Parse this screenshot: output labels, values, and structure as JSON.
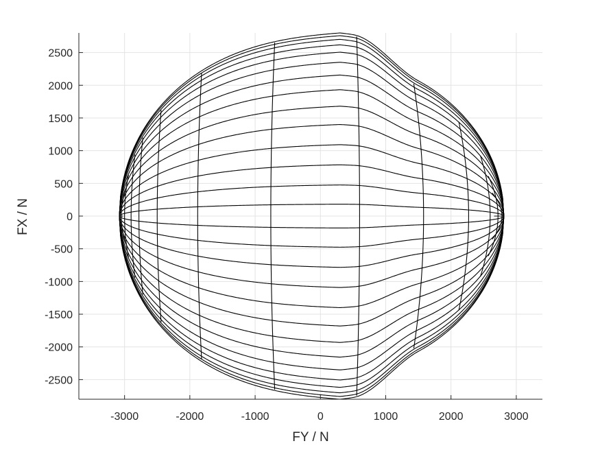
{
  "chart_data": {
    "type": "line",
    "title": "",
    "xlabel": "FY / N",
    "ylabel": "FX / N",
    "xlim": [
      -3700,
      3400
    ],
    "ylim": [
      -2800,
      2800
    ],
    "grid": true,
    "xticks": [
      -3000,
      -2000,
      -1000,
      0,
      1000,
      2000,
      3000
    ],
    "xtick_labels": [
      "-3000",
      "-2000",
      "-1000",
      "0",
      "1000",
      "2000",
      "3000"
    ],
    "yticks": [
      -2500,
      -2000,
      -1500,
      -1000,
      -500,
      0,
      500,
      1000,
      1500,
      2000,
      2500
    ],
    "ytick_labels": [
      "-2500",
      "-2000",
      "-1500",
      "-1000",
      "-500",
      "0",
      "500",
      "1000",
      "1500",
      "2000",
      "2500"
    ],
    "line_color": "#000000",
    "envelope": {
      "fy_min": -3080,
      "fy_max": 2810,
      "fx_max": 2800,
      "fx_min": -2800,
      "fy_at_peak": 300
    },
    "longitudinal_curve_levels": [
      0.065,
      0.17,
      0.28,
      0.39,
      0.5,
      0.6,
      0.69,
      0.77,
      0.84,
      0.895,
      0.935,
      0.965,
      0.985,
      1.0
    ],
    "lateral_curve_fy": [
      -3080,
      -3050,
      -3000,
      -2900,
      -2780,
      -2500,
      -1880,
      -760,
      600,
      1580,
      2270,
      2600,
      2720,
      2780,
      2810
    ]
  }
}
